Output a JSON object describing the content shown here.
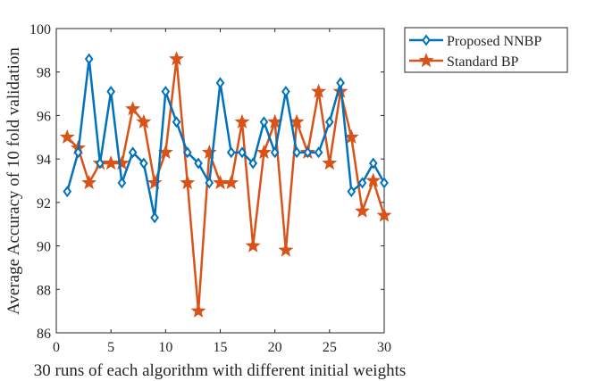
{
  "chart_data": {
    "type": "line",
    "title": "",
    "xlabel": "30 runs of each algorithm with different initial weights",
    "ylabel": "Average Accuracy of 10 fold validation",
    "xlim": [
      0,
      30
    ],
    "ylim": [
      86,
      100
    ],
    "xticks": [
      0,
      5,
      10,
      15,
      20,
      25,
      30
    ],
    "yticks": [
      86,
      88,
      90,
      92,
      94,
      96,
      98,
      100
    ],
    "grid": false,
    "legend_position": "outside-top-right",
    "x": [
      1,
      2,
      3,
      4,
      5,
      6,
      7,
      8,
      9,
      10,
      11,
      12,
      13,
      14,
      15,
      16,
      17,
      18,
      19,
      20,
      21,
      22,
      23,
      24,
      25,
      26,
      27,
      28,
      29,
      30
    ],
    "series": [
      {
        "name": "Proposed NNBP",
        "color": "#0072BD",
        "marker": "diamond",
        "values": [
          92.5,
          94.3,
          98.6,
          93.8,
          97.1,
          92.9,
          94.3,
          93.8,
          91.3,
          97.1,
          95.7,
          94.3,
          93.8,
          92.9,
          97.5,
          94.3,
          94.3,
          93.8,
          95.7,
          94.3,
          97.1,
          94.3,
          94.3,
          94.3,
          95.7,
          97.5,
          92.5,
          92.9,
          93.8,
          92.9
        ]
      },
      {
        "name": "Standard BP",
        "color": "#D95319",
        "marker": "star",
        "values": [
          95.0,
          94.5,
          92.9,
          93.8,
          93.8,
          93.8,
          96.3,
          95.7,
          92.9,
          94.3,
          98.6,
          92.9,
          87.0,
          94.3,
          92.9,
          92.9,
          95.7,
          90.0,
          94.3,
          95.7,
          89.8,
          95.7,
          94.3,
          97.1,
          93.8,
          97.1,
          95.0,
          91.6,
          93.0,
          91.4
        ]
      }
    ]
  }
}
